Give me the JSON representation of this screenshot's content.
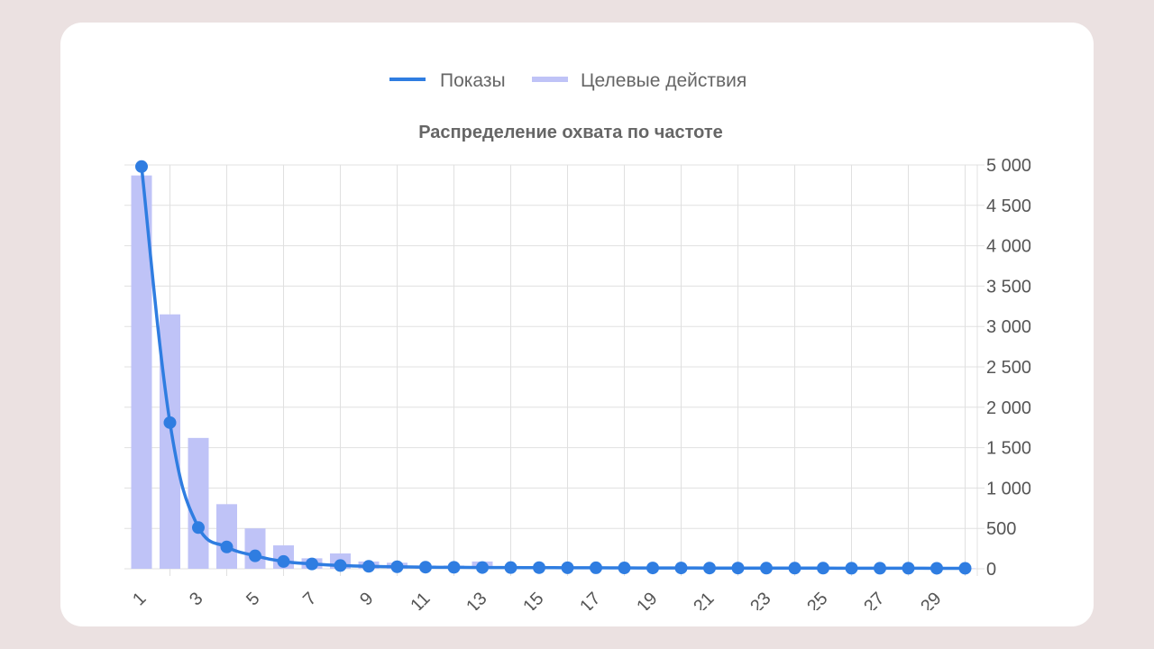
{
  "colors": {
    "page_background": "#ebe1e1",
    "line": "#2f7de1",
    "bar": "#bfc3f7"
  },
  "chart_data": {
    "type": "bar",
    "title": "Распределение охвата по частоте",
    "legend_position": "top-center",
    "grid": true,
    "x": [
      1,
      2,
      3,
      4,
      5,
      6,
      7,
      8,
      9,
      10,
      11,
      12,
      13,
      14,
      15,
      16,
      17,
      18,
      19,
      20,
      21,
      22,
      23,
      24,
      25,
      26,
      27,
      28,
      29,
      30
    ],
    "x_tick_labels": [
      "1",
      "3",
      "5",
      "7",
      "9",
      "11",
      "13",
      "15",
      "17",
      "19",
      "21",
      "23",
      "25",
      "27",
      "29"
    ],
    "y_tick_labels": [
      "0",
      "500",
      "1 000",
      "1 500",
      "2 000",
      "2 500",
      "3 000",
      "3 500",
      "4 000",
      "4 500",
      "5 000"
    ],
    "ylim": [
      0,
      5000
    ],
    "y_axis_side": "right",
    "series": [
      {
        "name": "Показы",
        "type": "line",
        "values": [
          4980,
          1810,
          510,
          270,
          160,
          90,
          60,
          40,
          30,
          25,
          20,
          18,
          16,
          15,
          14,
          13,
          12,
          11,
          10,
          10,
          9,
          9,
          8,
          8,
          8,
          7,
          7,
          7,
          6,
          6
        ]
      },
      {
        "name": "Целевые действия",
        "type": "bar",
        "values": [
          4870,
          3150,
          1620,
          800,
          500,
          290,
          130,
          190,
          90,
          75,
          40,
          40,
          90,
          30,
          20,
          10,
          10,
          10,
          8,
          8,
          8,
          5,
          5,
          5,
          5,
          5,
          5,
          5,
          5,
          5
        ]
      }
    ]
  }
}
